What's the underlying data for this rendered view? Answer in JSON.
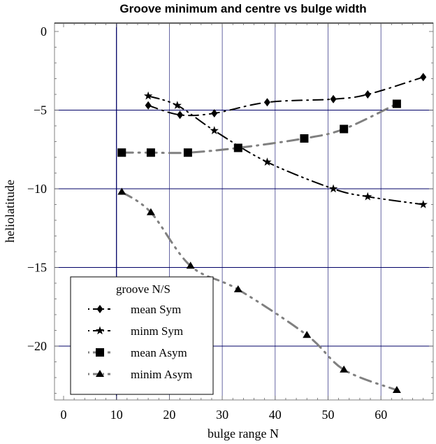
{
  "chart_data": {
    "type": "line",
    "title": "Groove minimum and centre vs bulge width",
    "xlabel": "bulge range N",
    "ylabel": "heliolatitude",
    "xlim": [
      -1.7,
      70
    ],
    "ylim": [
      -23.4,
      0.5
    ],
    "xticks": [
      0,
      10,
      20,
      30,
      40,
      50,
      60
    ],
    "xtick_labels": [
      "0",
      "10",
      "20",
      "30",
      "40",
      "50",
      "60"
    ],
    "yticks": [
      0,
      -5,
      -10,
      -15,
      -20
    ],
    "ytick_labels": [
      "0",
      "−5",
      "−10",
      "−15",
      "−20"
    ],
    "grid": true,
    "legend": {
      "title": "groove N/S",
      "placement": "bottom-left"
    },
    "series": [
      {
        "name": "mean Sym",
        "marker": "diamond",
        "color": "#000000",
        "x": [
          16,
          22,
          28.5,
          38.5,
          51,
          57.5,
          68
        ],
        "y": [
          -4.7,
          -5.3,
          -5.2,
          -4.5,
          -4.3,
          -4.0,
          -2.9
        ]
      },
      {
        "name": "minm Sym",
        "marker": "star",
        "color": "#000000",
        "x": [
          16,
          21.5,
          28.5,
          38.5,
          51,
          57.5,
          68
        ],
        "y": [
          -4.1,
          -4.7,
          -6.3,
          -8.3,
          -10.0,
          -10.5,
          -11.0
        ]
      },
      {
        "name": "mean Asym",
        "marker": "square",
        "color": "#808080",
        "x": [
          11,
          16.5,
          23.5,
          33,
          45.5,
          53,
          63
        ],
        "y": [
          -7.7,
          -7.7,
          -7.7,
          -7.4,
          -6.8,
          -6.2,
          -4.6
        ]
      },
      {
        "name": "minim Asym",
        "marker": "triangle",
        "color": "#808080",
        "x": [
          11,
          16.5,
          24,
          33,
          46,
          53,
          63
        ],
        "y": [
          -10.2,
          -11.5,
          -14.9,
          -16.4,
          -19.3,
          -21.5,
          -22.8
        ]
      }
    ]
  },
  "colors": {
    "grid": "#000066",
    "frame": "#808080",
    "marker": "#000000"
  }
}
